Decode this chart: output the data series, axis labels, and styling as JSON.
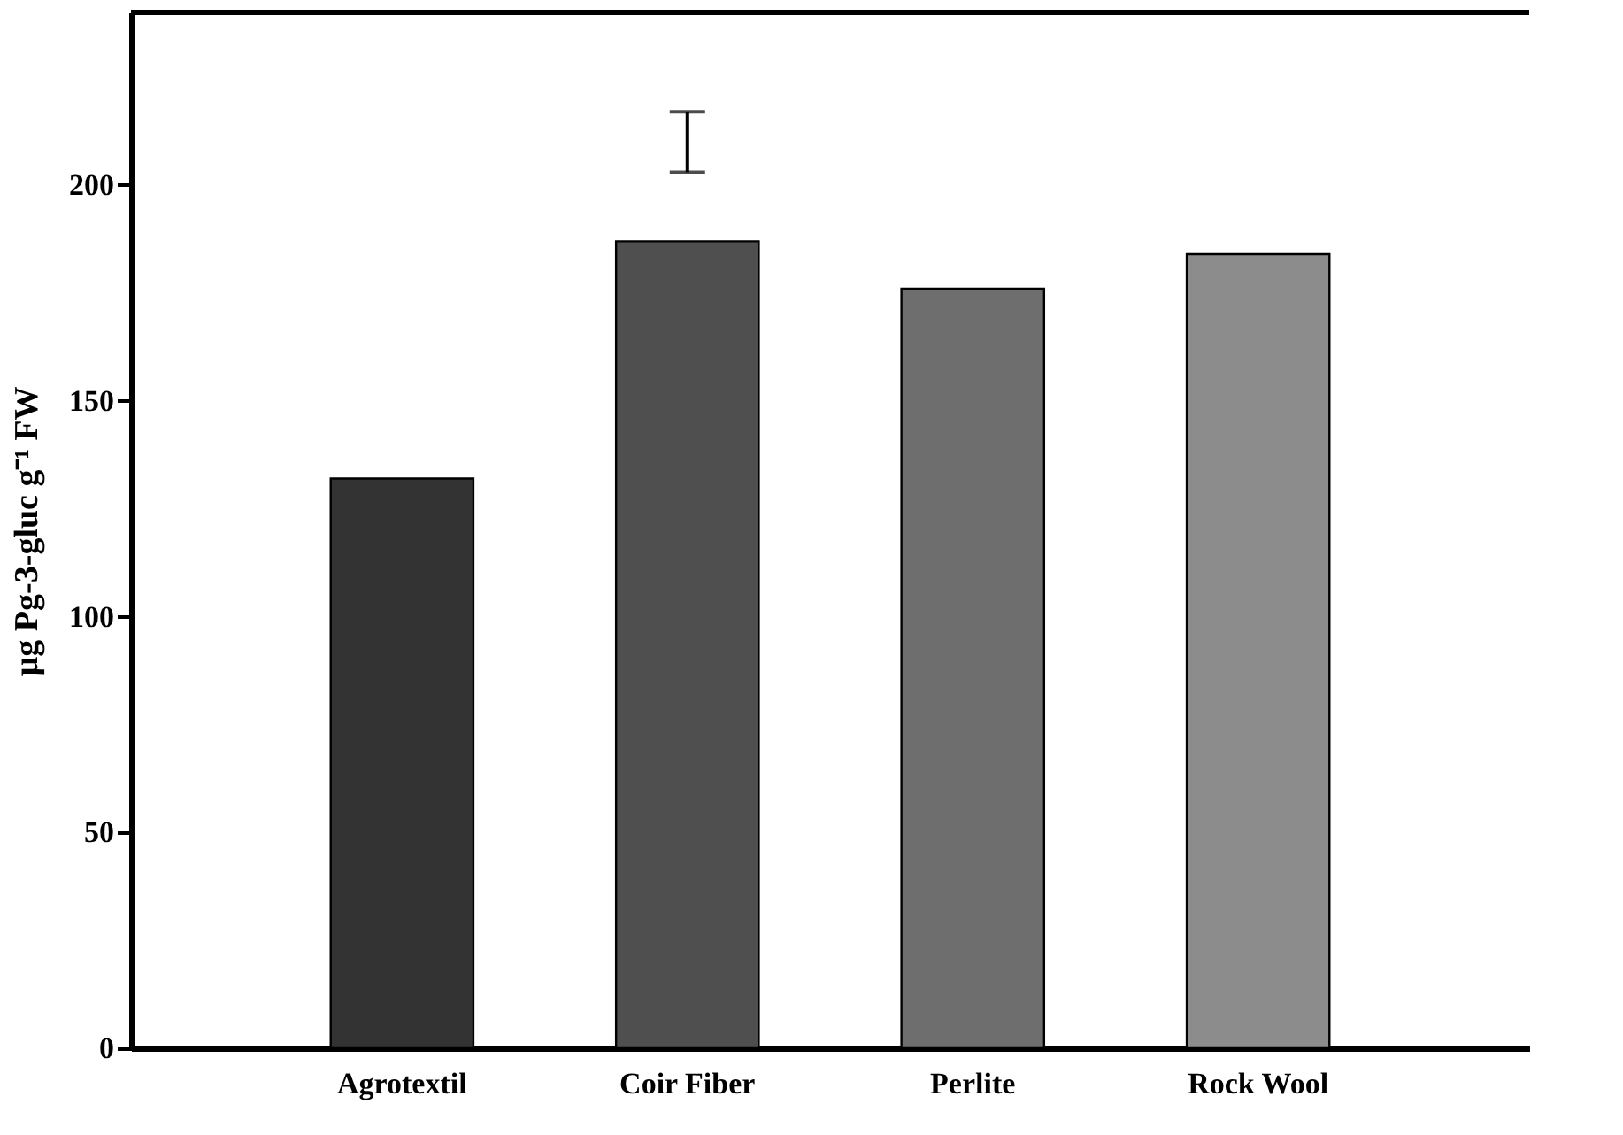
{
  "chart_data": {
    "type": "bar",
    "ylabel": "µg Pg-3-gluc g⁻¹ FW",
    "categories": [
      "Agrotextil",
      "Coir Fiber",
      "Perlite",
      "Rock Wool"
    ],
    "values": [
      132,
      187,
      176,
      184
    ],
    "colors": [
      "#333333",
      "#4f4f4f",
      "#6e6e6e",
      "#8c8c8c"
    ],
    "errors": [
      null,
      [
        203,
        217
      ],
      null,
      null
    ],
    "ylim": [
      0,
      240
    ],
    "yticks": [
      0,
      50,
      100,
      150,
      200
    ],
    "grid": false
  }
}
